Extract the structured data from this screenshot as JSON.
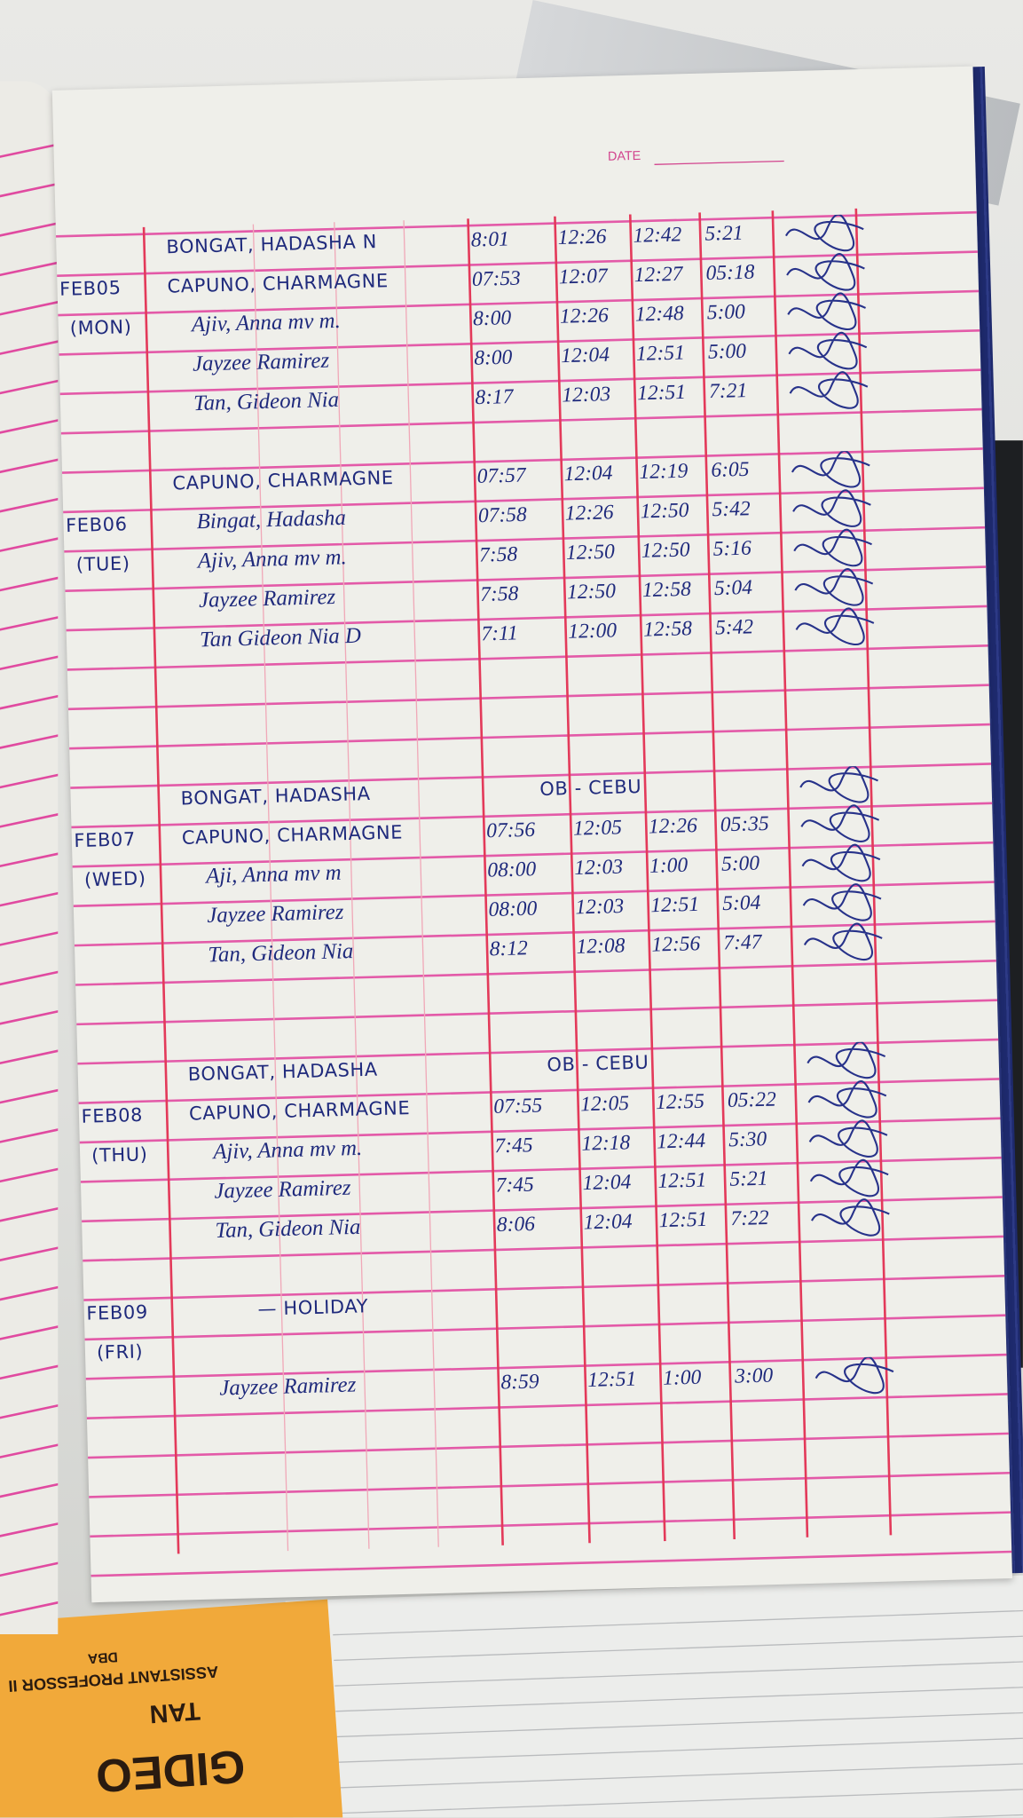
{
  "header": {
    "date_label": "DATE"
  },
  "days": [
    {
      "date": "FEB05",
      "weekday": "(MON)",
      "entries": [
        {
          "name": "BONGAT, HADASHA N",
          "times": [
            "8:01",
            "12:26",
            "12:42",
            "5:21"
          ]
        },
        {
          "name": "CAPUNO, CHARMAGNE",
          "times": [
            "07:53",
            "12:07",
            "12:27",
            "05:18"
          ]
        },
        {
          "name": "Ajiv, Anna mv m.",
          "times": [
            "8:00",
            "12:26",
            "12:48",
            "5:00"
          ]
        },
        {
          "name": "Jayzee Ramirez",
          "times": [
            "8:00",
            "12:04",
            "12:51",
            "5:00"
          ]
        },
        {
          "name": "Tan, Gideon Nia",
          "times": [
            "8:17",
            "12:03",
            "12:51",
            "7:21"
          ]
        }
      ]
    },
    {
      "date": "FEB06",
      "weekday": "(TUE)",
      "entries": [
        {
          "name": "CAPUNO, CHARMAGNE",
          "times": [
            "07:57",
            "12:04",
            "12:19",
            "6:05"
          ]
        },
        {
          "name": "Bingat, Hadasha",
          "times": [
            "07:58",
            "12:26",
            "12:50",
            "5:42"
          ]
        },
        {
          "name": "Ajiv, Anna mv m.",
          "times": [
            "7:58",
            "12:50",
            "12:50",
            "5:16"
          ]
        },
        {
          "name": "Jayzee Ramirez",
          "times": [
            "7:58",
            "12:50",
            "12:58",
            "5:04"
          ]
        },
        {
          "name": "Tan Gideon Nia D",
          "times": [
            "7:11",
            "12:00",
            "12:58",
            "5:42"
          ]
        }
      ]
    },
    {
      "date": "FEB07",
      "weekday": "(WED)",
      "entries": [
        {
          "name": "BONGAT, HADASHA",
          "note": "OB - CEBU"
        },
        {
          "name": "CAPUNO, CHARMAGNE",
          "times": [
            "07:56",
            "12:05",
            "12:26",
            "05:35"
          ]
        },
        {
          "name": "Aji, Anna mv m",
          "times": [
            "08:00",
            "12:03",
            "1:00",
            "5:00"
          ]
        },
        {
          "name": "Jayzee Ramirez",
          "times": [
            "08:00",
            "12:03",
            "12:51",
            "5:04"
          ]
        },
        {
          "name": "Tan, Gideon Nia",
          "times": [
            "8:12",
            "12:08",
            "12:56",
            "7:47"
          ]
        }
      ]
    },
    {
      "date": "FEB08",
      "weekday": "(THU)",
      "entries": [
        {
          "name": "BONGAT, HADASHA",
          "note": "OB - CEBU"
        },
        {
          "name": "CAPUNO, CHARMAGNE",
          "times": [
            "07:55",
            "12:05",
            "12:55",
            "05:22"
          ]
        },
        {
          "name": "Ajiv, Anna mv m.",
          "times": [
            "7:45",
            "12:18",
            "12:44",
            "5:30"
          ]
        },
        {
          "name": "Jayzee Ramirez",
          "times": [
            "7:45",
            "12:04",
            "12:51",
            "5:21"
          ]
        },
        {
          "name": "Tan, Gideon Nia",
          "times": [
            "8:06",
            "12:04",
            "12:51",
            "7:22"
          ]
        }
      ]
    },
    {
      "date": "FEB09",
      "weekday": "(FRI)",
      "note": "— HOLIDAY",
      "entries": [
        {
          "name": "Jayzee Ramirez",
          "times": [
            "8:59",
            "12:51",
            "1:00",
            "3:00"
          ]
        }
      ]
    }
  ],
  "book_cover": {
    "name": "GIDEO",
    "surname": "TAN",
    "title": "ASSISTANT PROFESSOR II",
    "degree": "DBA"
  },
  "colors": {
    "ink": "#1f2a7c",
    "rule": "#e0409c",
    "column_rule": "#e33a5a",
    "cover": "#f1a93a",
    "binding": "#1e2a6e"
  }
}
